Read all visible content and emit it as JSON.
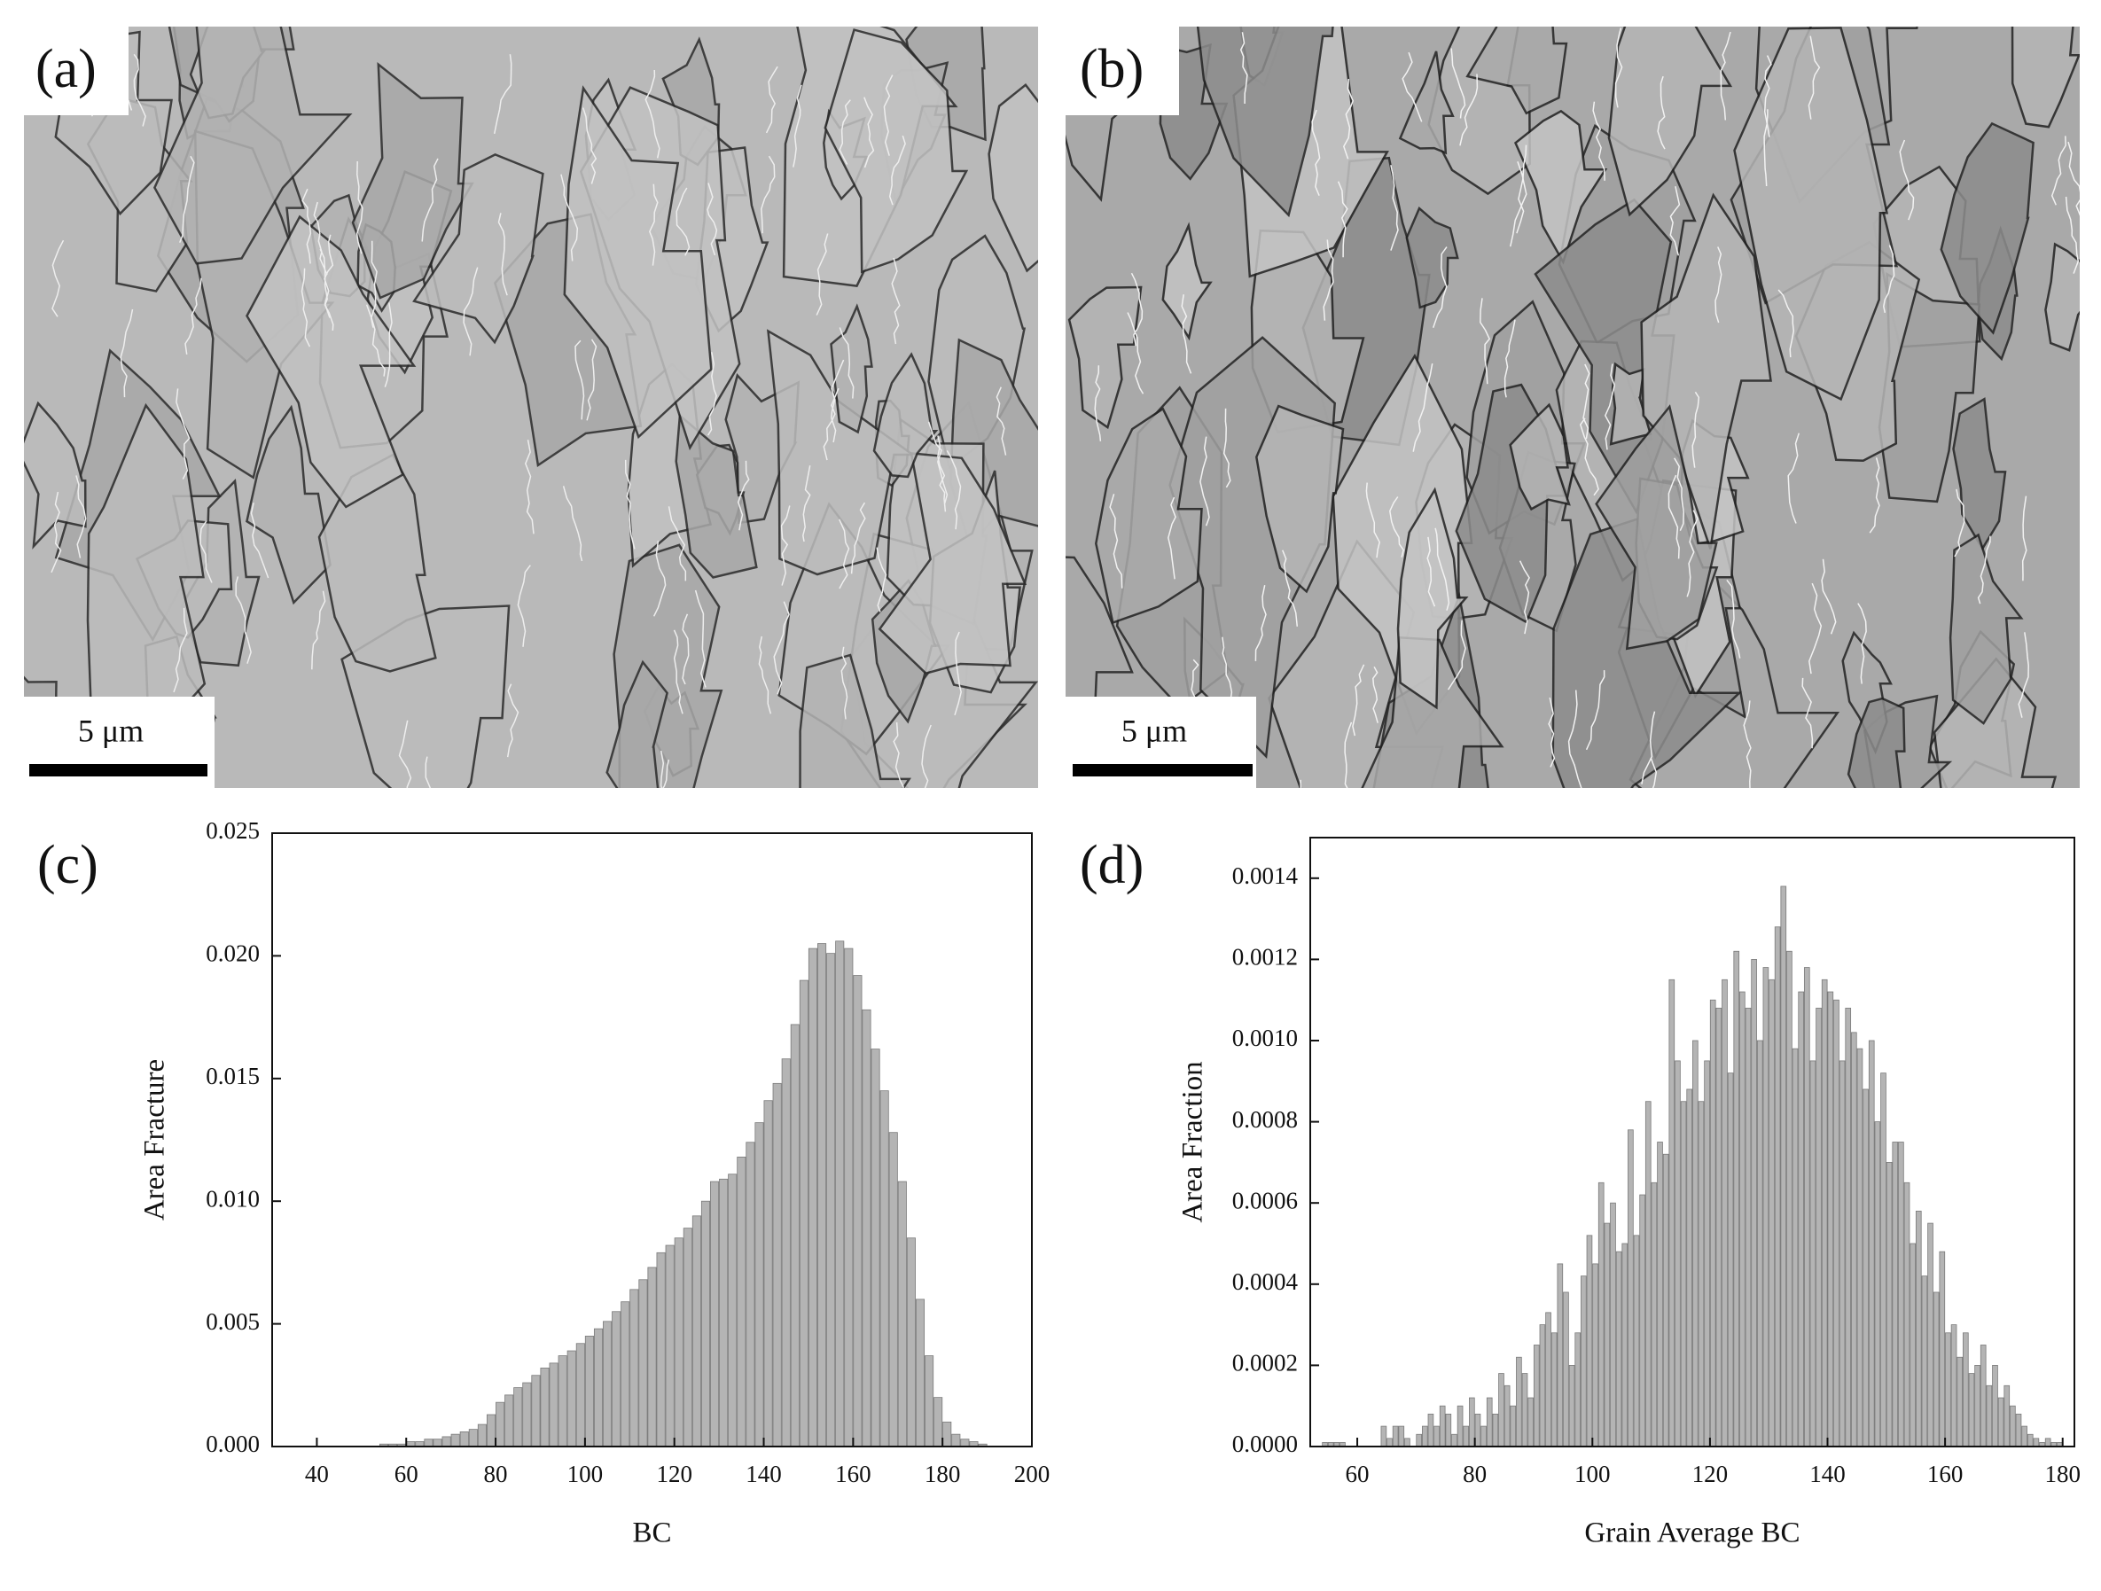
{
  "panels": [
    {
      "label": "(a)",
      "scale_bar": "5 μm"
    },
    {
      "label": "(b)",
      "scale_bar": "5 μm"
    }
  ],
  "chart_data": [
    {
      "type": "histogram",
      "label": "(c)",
      "x_label": "BC",
      "y_label": "Area Fracture",
      "color": "#b4b4b4",
      "bins": [
        54,
        56,
        58,
        60,
        62,
        64,
        66,
        68,
        70,
        72,
        74,
        76,
        78,
        80,
        82,
        84,
        86,
        88,
        90,
        92,
        94,
        96,
        98,
        100,
        102,
        104,
        106,
        108,
        110,
        112,
        114,
        116,
        118,
        120,
        122,
        124,
        126,
        128,
        130,
        132,
        134,
        136,
        138,
        140,
        142,
        144,
        146,
        148,
        150,
        152,
        154,
        156,
        158,
        160,
        162,
        164,
        166,
        168,
        170,
        172,
        174,
        176,
        178,
        180,
        182,
        184,
        186,
        188,
        190
      ],
      "values": [
        0.0001,
        0.0001,
        0.0001,
        0.0002,
        0.0002,
        0.0003,
        0.0003,
        0.0004,
        0.0005,
        0.0006,
        0.0007,
        0.0009,
        0.0013,
        0.0018,
        0.0021,
        0.0024,
        0.0026,
        0.0029,
        0.0032,
        0.0034,
        0.0037,
        0.0039,
        0.0042,
        0.0045,
        0.0048,
        0.0051,
        0.0055,
        0.0059,
        0.0064,
        0.0068,
        0.0073,
        0.0079,
        0.0082,
        0.0085,
        0.0089,
        0.0094,
        0.01,
        0.0108,
        0.0109,
        0.0111,
        0.0118,
        0.0124,
        0.0132,
        0.0141,
        0.0148,
        0.0158,
        0.0172,
        0.019,
        0.0203,
        0.0205,
        0.0201,
        0.0206,
        0.0203,
        0.0192,
        0.0178,
        0.0162,
        0.0145,
        0.0128,
        0.0108,
        0.0085,
        0.006,
        0.0037,
        0.002,
        0.001,
        0.0005,
        0.0003,
        0.0002,
        0.0001
      ],
      "xlim": [
        30,
        200
      ],
      "xticks": [
        40,
        60,
        80,
        100,
        120,
        140,
        160,
        180,
        200
      ],
      "ylim": [
        0,
        0.025
      ],
      "yticks": [
        {
          "value": 0,
          "label": "0.000"
        },
        {
          "value": 0.005,
          "label": "0.005"
        },
        {
          "value": 0.01,
          "label": "0.010"
        },
        {
          "value": 0.015,
          "label": "0.015"
        },
        {
          "value": 0.02,
          "label": "0.020"
        },
        {
          "value": 0.025,
          "label": "0.025"
        }
      ]
    },
    {
      "type": "histogram",
      "label": "(d)",
      "x_label": "Grain Average BC",
      "y_label": "Area Fraction",
      "color": "#b4b4b4",
      "bins": [
        54,
        55,
        56,
        57,
        58,
        59,
        60,
        61,
        62,
        63,
        64,
        65,
        66,
        67,
        68,
        69,
        70,
        71,
        72,
        73,
        74,
        75,
        76,
        77,
        78,
        79,
        80,
        81,
        82,
        83,
        84,
        85,
        86,
        87,
        88,
        89,
        90,
        91,
        92,
        93,
        94,
        95,
        96,
        97,
        98,
        99,
        100,
        101,
        102,
        103,
        104,
        105,
        106,
        107,
        108,
        109,
        110,
        111,
        112,
        113,
        114,
        115,
        116,
        117,
        118,
        119,
        120,
        121,
        122,
        123,
        124,
        125,
        126,
        127,
        128,
        129,
        130,
        131,
        132,
        133,
        134,
        135,
        136,
        137,
        138,
        139,
        140,
        141,
        142,
        143,
        144,
        145,
        146,
        147,
        148,
        149,
        150,
        151,
        152,
        153,
        154,
        155,
        156,
        157,
        158,
        159,
        160,
        161,
        162,
        163,
        164,
        165,
        166,
        167,
        168,
        169,
        170,
        171,
        172,
        173,
        174,
        175,
        176,
        177,
        178,
        179,
        180
      ],
      "values": [
        1e-05,
        1e-05,
        1e-05,
        1e-05,
        0,
        0,
        0,
        0,
        0,
        0,
        5e-05,
        2e-05,
        5e-05,
        5e-05,
        2e-05,
        0,
        3e-05,
        5e-05,
        8e-05,
        5e-05,
        0.0001,
        8e-05,
        3e-05,
        0.0001,
        5e-05,
        0.00012,
        8e-05,
        5e-05,
        0.00012,
        8e-05,
        0.00018,
        0.00015,
        0.0001,
        0.00022,
        0.00018,
        0.00012,
        0.00025,
        0.0003,
        0.00033,
        0.00028,
        0.00045,
        0.00038,
        0.0002,
        0.00028,
        0.00042,
        0.00052,
        0.00045,
        0.00065,
        0.00055,
        0.0006,
        0.00048,
        0.0005,
        0.00078,
        0.00052,
        0.00062,
        0.00085,
        0.00065,
        0.00075,
        0.00072,
        0.00115,
        0.00095,
        0.00085,
        0.00088,
        0.001,
        0.00085,
        0.00095,
        0.0011,
        0.00108,
        0.00115,
        0.00092,
        0.00122,
        0.00112,
        0.00108,
        0.0012,
        0.001,
        0.00118,
        0.00115,
        0.00128,
        0.00138,
        0.00122,
        0.00098,
        0.00112,
        0.00118,
        0.00095,
        0.00108,
        0.00115,
        0.00112,
        0.0011,
        0.00095,
        0.00108,
        0.00102,
        0.00098,
        0.00088,
        0.001,
        0.0008,
        0.00092,
        0.0007,
        0.00075,
        0.00075,
        0.00065,
        0.0005,
        0.00058,
        0.00042,
        0.00055,
        0.00038,
        0.00048,
        0.00028,
        0.0003,
        0.00022,
        0.00028,
        0.00018,
        0.0002,
        0.00025,
        0.00015,
        0.0002,
        0.00012,
        0.00015,
        0.0001,
        8e-05,
        5e-05,
        3e-05,
        2e-05,
        1e-05,
        2e-05,
        1e-05,
        1e-05
      ],
      "xlim": [
        52,
        182
      ],
      "xticks": [
        60,
        80,
        100,
        120,
        140,
        160,
        180
      ],
      "ylim": [
        0,
        0.0015
      ],
      "yticks": [
        {
          "value": 0,
          "label": "0.0000"
        },
        {
          "value": 0.0002,
          "label": "0.0002"
        },
        {
          "value": 0.0004,
          "label": "0.0004"
        },
        {
          "value": 0.0006,
          "label": "0.0006"
        },
        {
          "value": 0.0008,
          "label": "0.0008"
        },
        {
          "value": 0.001,
          "label": "0.0010"
        },
        {
          "value": 0.0012,
          "label": "0.0012"
        },
        {
          "value": 0.0014,
          "label": "0.0014"
        }
      ]
    }
  ]
}
